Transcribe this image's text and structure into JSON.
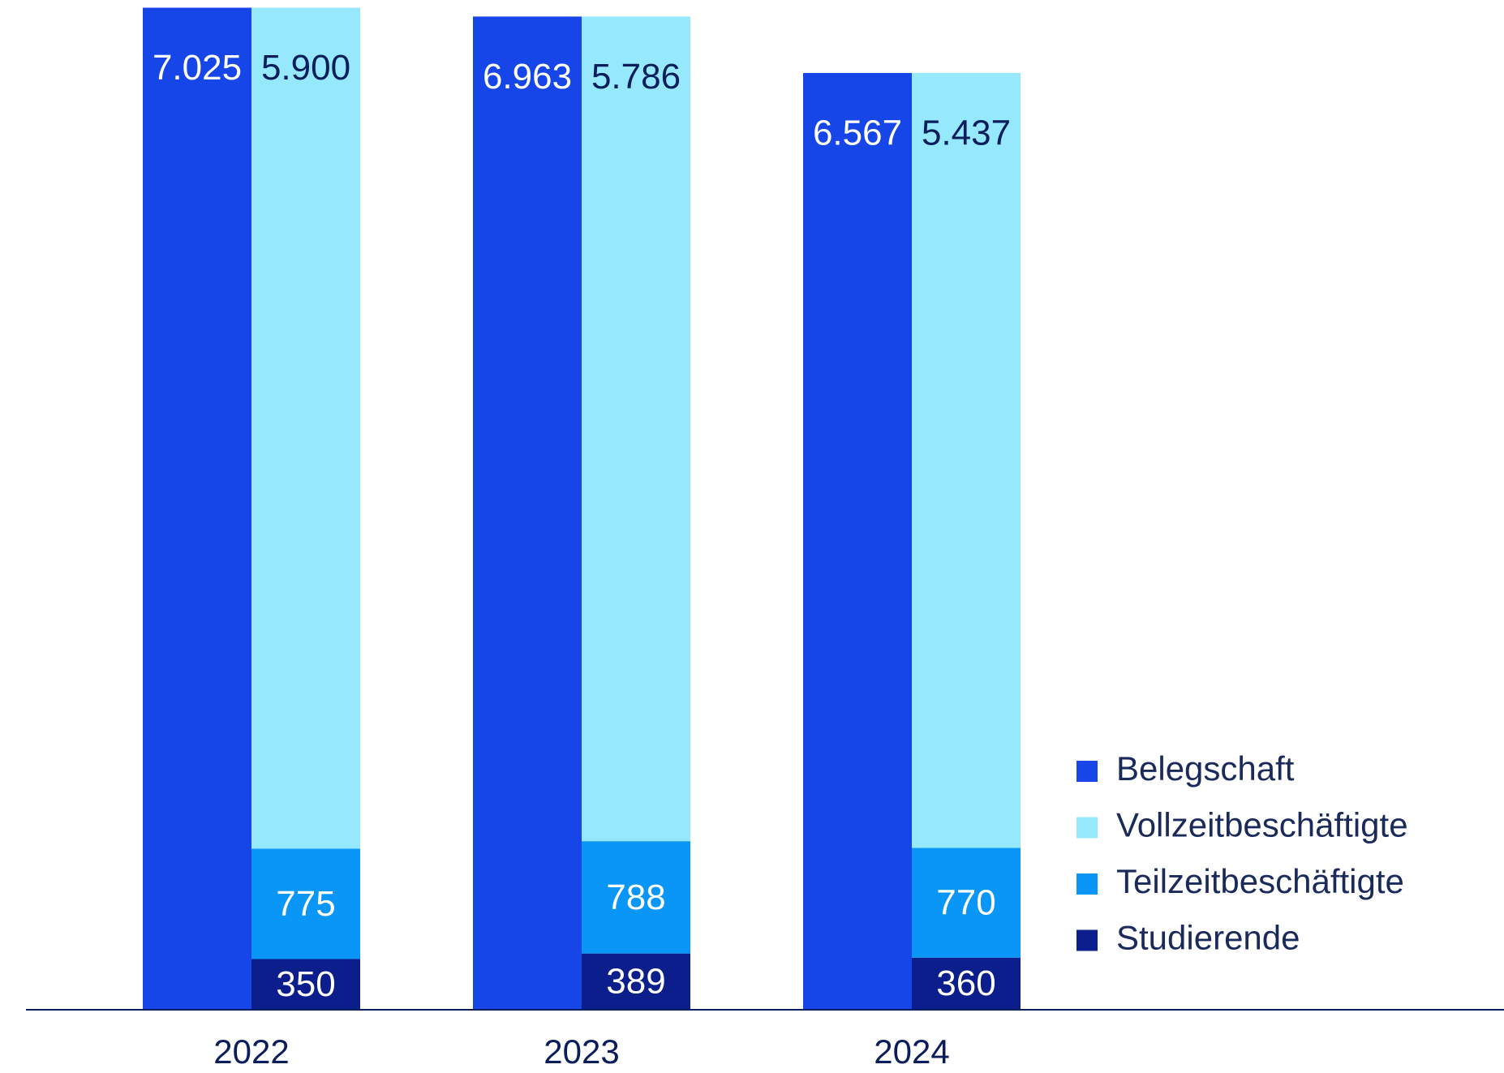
{
  "chart_data": {
    "type": "bar",
    "categories": [
      "2022",
      "2023",
      "2024"
    ],
    "series": [
      {
        "name": "Belegschaft",
        "color": "#1746e8",
        "values": [
          7025,
          6963,
          6567
        ],
        "value_labels": [
          "7.025",
          "6.963",
          "6.567"
        ]
      },
      {
        "name": "Vollzeitbeschäftigte",
        "color": "#96e8fc",
        "values": [
          5900,
          5786,
          5437
        ],
        "value_labels": [
          "5.900",
          "5.786",
          "5.437"
        ]
      },
      {
        "name": "Teilzeitbeschäftigte",
        "color": "#0a96f7",
        "values": [
          775,
          788,
          770
        ]
      },
      {
        "name": "Studierende",
        "color": "#0b1e8c",
        "values": [
          350,
          389,
          360
        ]
      }
    ]
  }
}
